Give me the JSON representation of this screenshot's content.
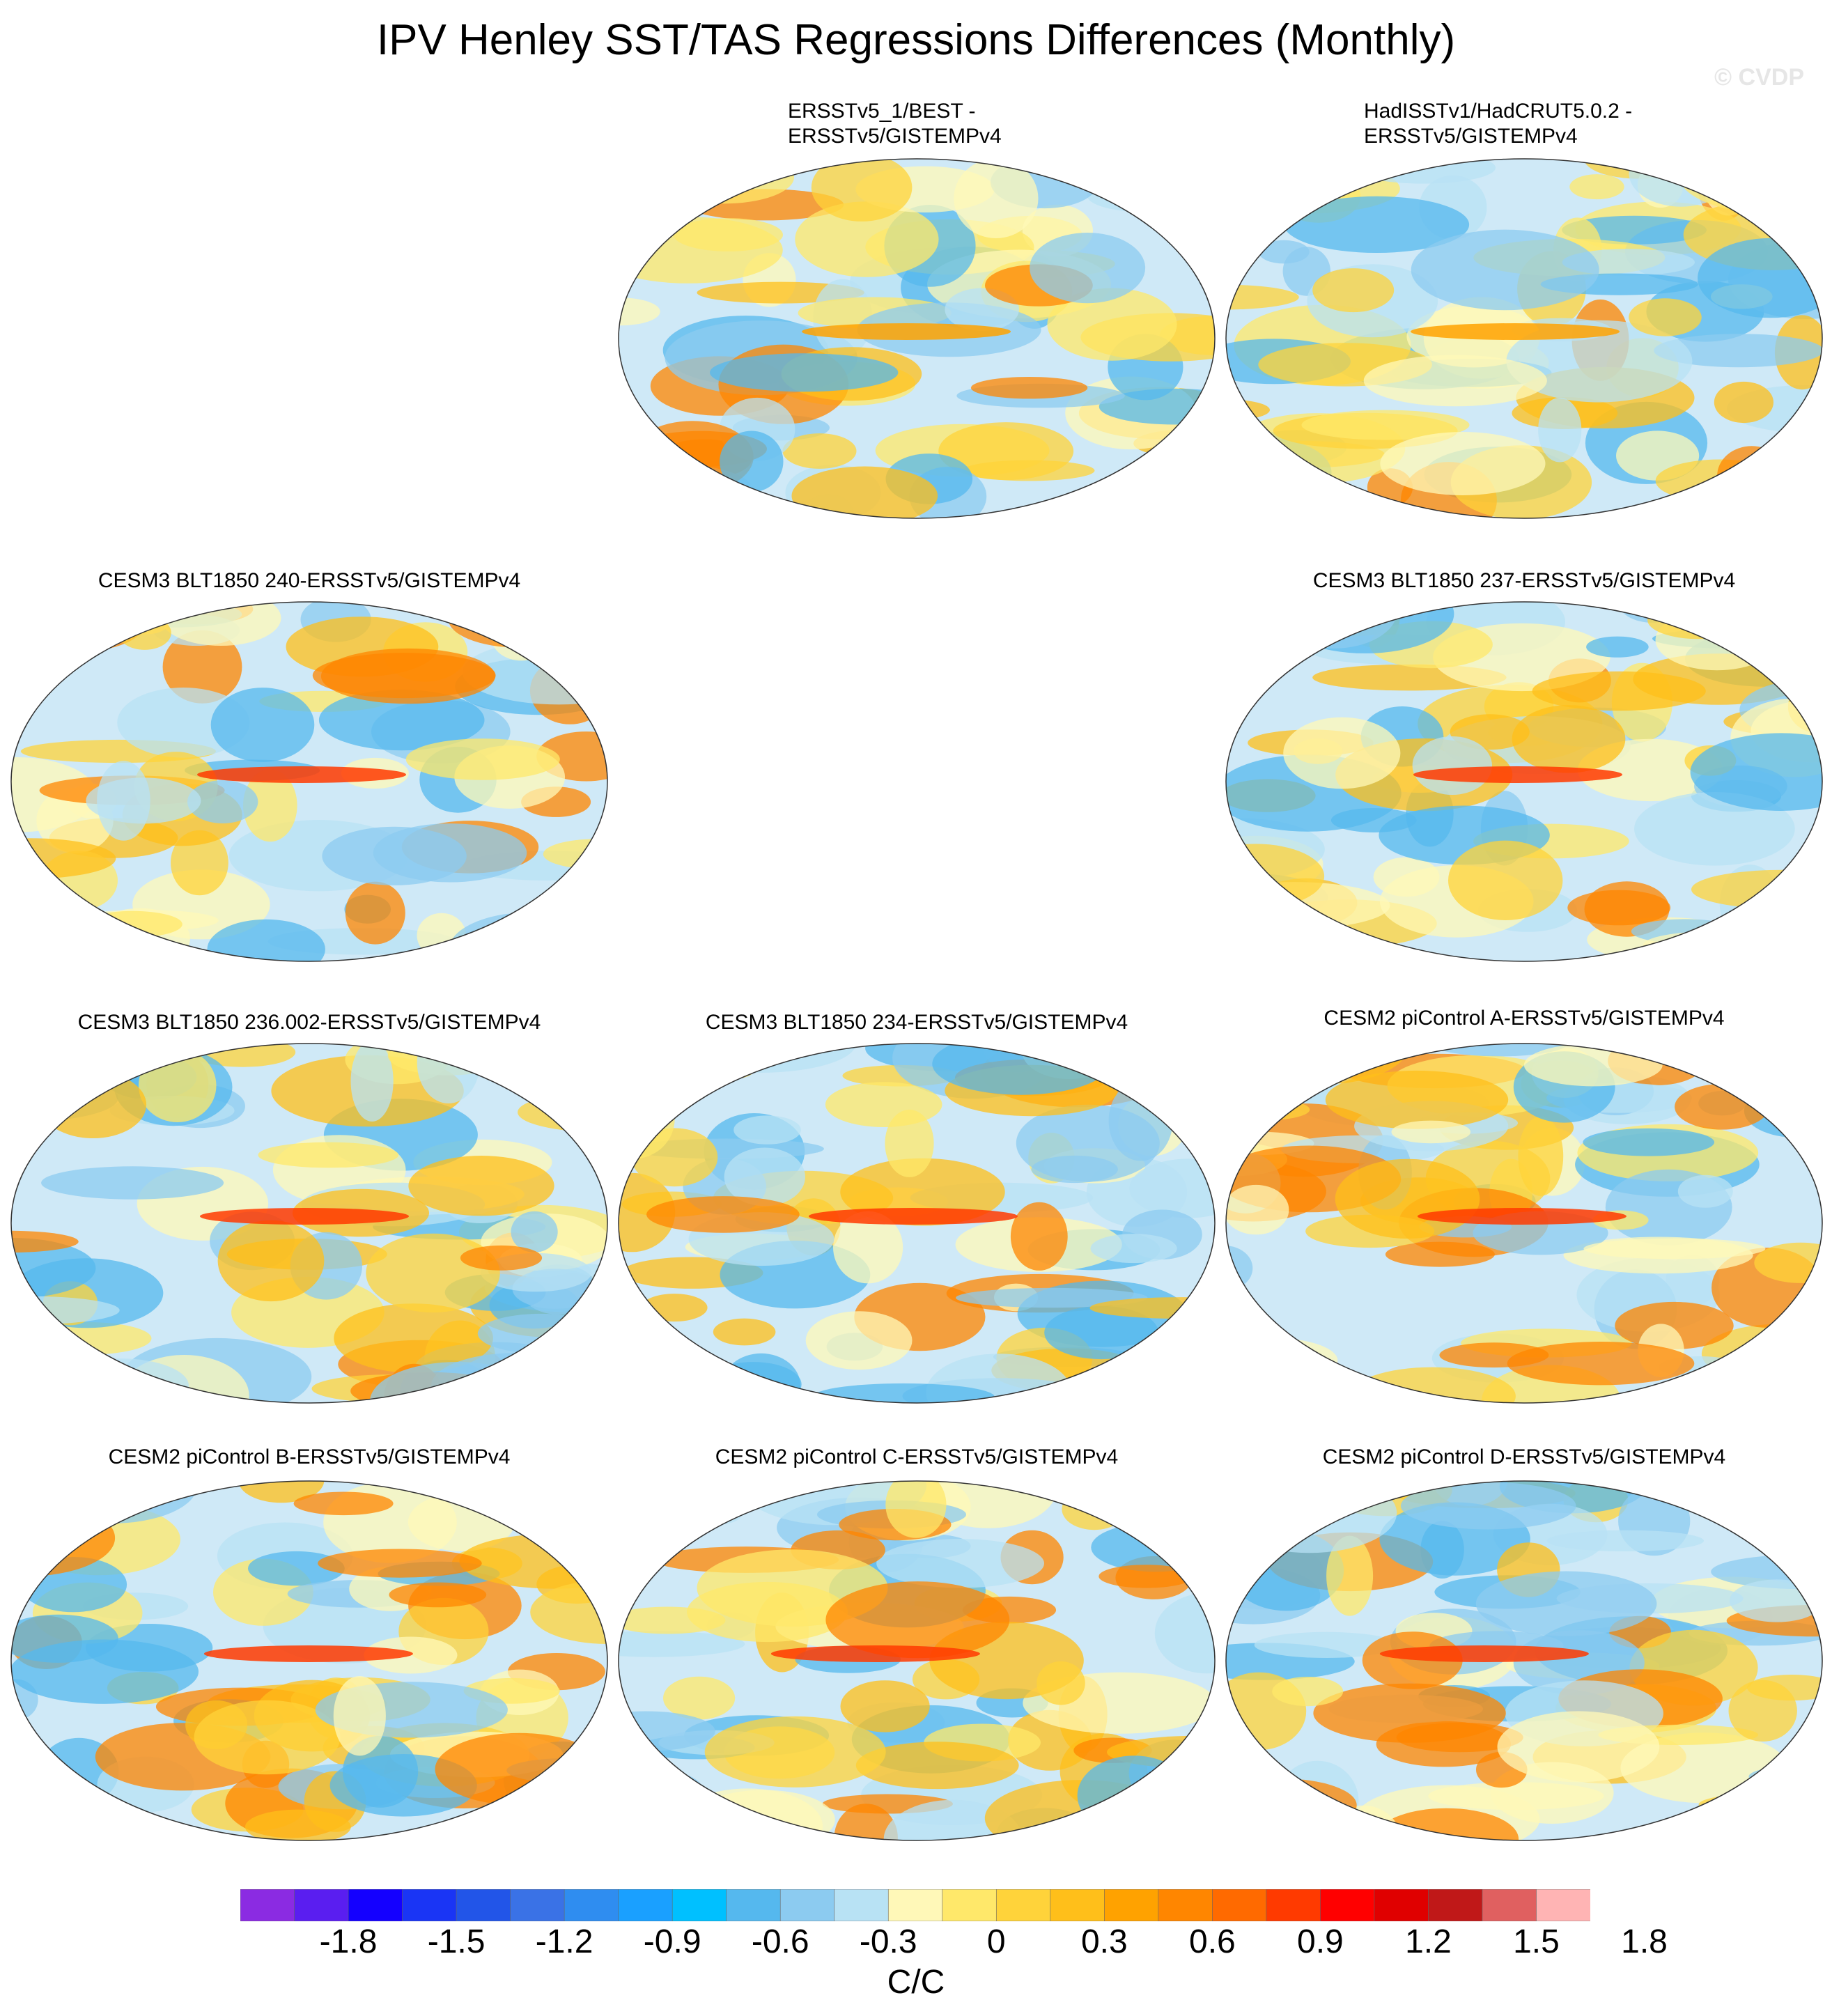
{
  "title": "IPV Henley SST/TAS Regressions Differences (Monthly)",
  "credit": "© CVDP",
  "panels": [
    {
      "id": "p1",
      "title_lines": [
        "ERSSTv5_1/BEST -",
        "ERSSTv5/GISTEMPv4"
      ]
    },
    {
      "id": "p2",
      "title_lines": [
        "HadISSTv1/HadCRUT5.0.2 -",
        "ERSSTv5/GISTEMPv4"
      ]
    },
    {
      "id": "p3",
      "title_lines": [
        "CESM3 BLT1850 240-ERSSTv5/GISTEMPv4"
      ]
    },
    {
      "id": "p4",
      "title_lines": [
        "CESM3 BLT1850 237-ERSSTv5/GISTEMPv4"
      ]
    },
    {
      "id": "p5",
      "title_lines": [
        "CESM3 BLT1850 236.002-ERSSTv5/GISTEMPv4"
      ]
    },
    {
      "id": "p6",
      "title_lines": [
        "CESM3 BLT1850 234-ERSSTv5/GISTEMPv4"
      ]
    },
    {
      "id": "p7",
      "title_lines": [
        "CESM2 piControl A-ERSSTv5/GISTEMPv4"
      ]
    },
    {
      "id": "p8",
      "title_lines": [
        "CESM2 piControl B-ERSSTv5/GISTEMPv4"
      ]
    },
    {
      "id": "p9",
      "title_lines": [
        "CESM2 piControl C-ERSSTv5/GISTEMPv4"
      ]
    },
    {
      "id": "p10",
      "title_lines": [
        "CESM2 piControl D-ERSSTv5/GISTEMPv4"
      ]
    }
  ],
  "colorbar": {
    "colors": [
      "#8b2be2",
      "#5a1ef0",
      "#1400ff",
      "#1a35f5",
      "#2255e8",
      "#3a72e6",
      "#2f8df0",
      "#1aa0ff",
      "#00c0ff",
      "#55b8ee",
      "#8ccbf0",
      "#b8e2f4",
      "#fff8b8",
      "#ffe86a",
      "#ffd33a",
      "#ffbf1a",
      "#ffa200",
      "#ff8600",
      "#ff6a00",
      "#ff3a00",
      "#ff0000",
      "#e00000",
      "#c01818",
      "#e06060",
      "#ffb4b4"
    ],
    "labels": [
      "-1.8",
      "-1.5",
      "-1.2",
      "-0.9",
      "-0.6",
      "-0.3",
      "0",
      "0.3",
      "0.6",
      "0.9",
      "1.2",
      "1.5",
      "1.8"
    ],
    "units": "C/C"
  }
}
